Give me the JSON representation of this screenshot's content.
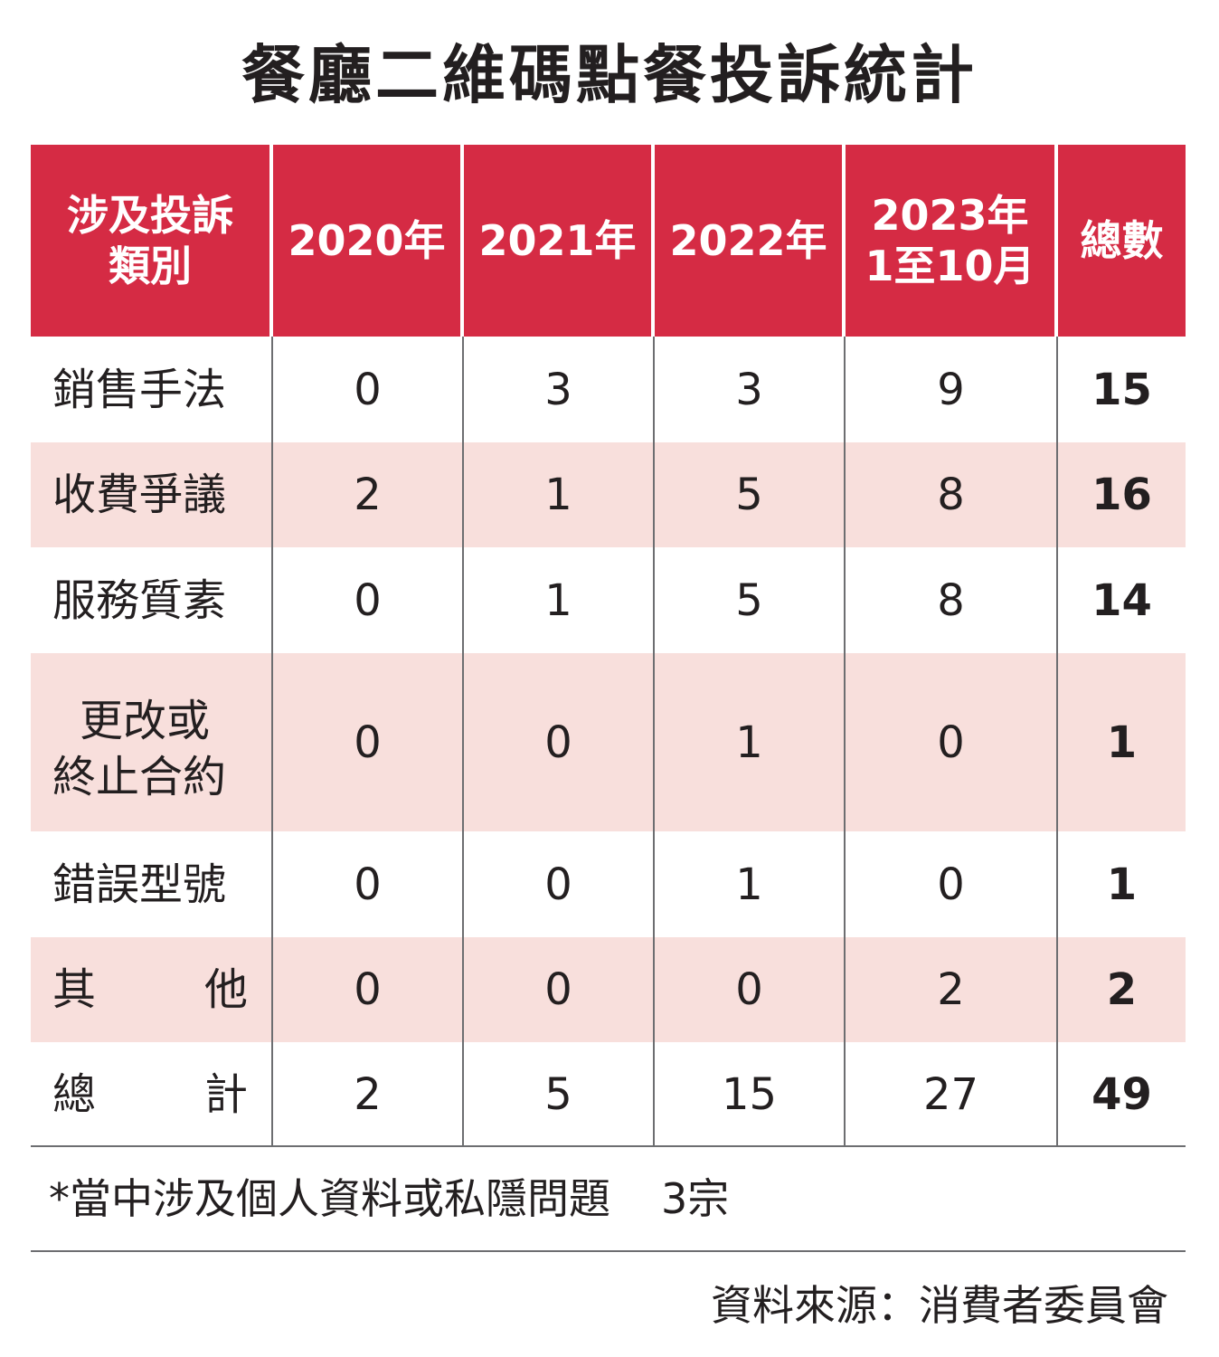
{
  "title": "餐廳二維碼點餐投訴統計",
  "chart_data": {
    "type": "table",
    "header": {
      "category_line1": "涉及投訴",
      "category_line2": "類別",
      "col_2020": "2020年",
      "col_2021": "2021年",
      "col_2022": "2022年",
      "col_2023_line1": "2023年",
      "col_2023_line2": "1至10月",
      "col_total": "總數"
    },
    "rows": [
      {
        "category": "銷售手法",
        "v2020": "0",
        "v2021": "3",
        "v2022": "3",
        "v2023": "9",
        "total": "15"
      },
      {
        "category": "收費爭議",
        "v2020": "2",
        "v2021": "1",
        "v2022": "5",
        "v2023": "8",
        "total": "16"
      },
      {
        "category": "服務質素",
        "v2020": "0",
        "v2021": "1",
        "v2022": "5",
        "v2023": "8",
        "total": "14"
      },
      {
        "category_line1": "更改或",
        "category_line2": "終止合約",
        "v2020": "0",
        "v2021": "0",
        "v2022": "1",
        "v2023": "0",
        "total": "1"
      },
      {
        "category": "錯誤型號",
        "v2020": "0",
        "v2021": "0",
        "v2022": "1",
        "v2023": "0",
        "total": "1"
      },
      {
        "category_a": "其",
        "category_b": "他",
        "v2020": "0",
        "v2021": "0",
        "v2022": "0",
        "v2023": "2",
        "total": "2"
      },
      {
        "category_a": "總",
        "category_b": "計",
        "v2020": "2",
        "v2021": "5",
        "v2022": "15",
        "v2023": "27",
        "total": "49"
      }
    ]
  },
  "note": {
    "text": "*當中涉及個人資料或私隱問題",
    "count": "3宗"
  },
  "source": "資料來源：消費者委員會",
  "colors": {
    "header_bg": "#d52b44",
    "stripe_bg": "#f8dfdc",
    "text": "#231f20",
    "rule": "#6d6e71"
  }
}
